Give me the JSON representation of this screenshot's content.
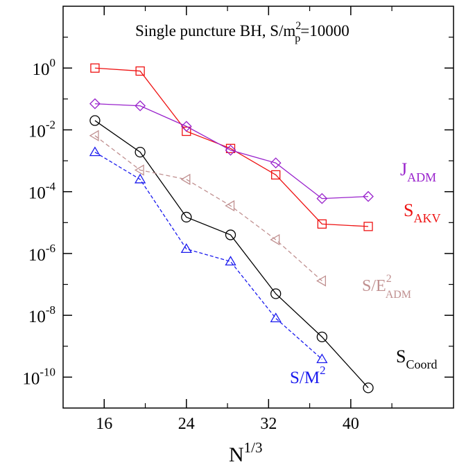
{
  "chart_data": {
    "type": "line",
    "title": "Single puncture BH, S/m",
    "title_sup": "2",
    "title_sub": "p",
    "title_tail": "=10000",
    "xlabel": "N",
    "xlabel_sup": "1/3",
    "ylabel": "",
    "xlim": [
      12,
      50
    ],
    "ylim": [
      -11,
      2
    ],
    "y_log_scale": true,
    "grid": false,
    "x_ticks": [
      {
        "value": 16,
        "label": "16"
      },
      {
        "value": 24,
        "label": "24"
      },
      {
        "value": 32,
        "label": "32"
      },
      {
        "value": 40,
        "label": "40"
      }
    ],
    "y_ticks": [
      {
        "exp": 0,
        "base": "10",
        "power": "0"
      },
      {
        "exp": -2,
        "base": "10",
        "power": "-2"
      },
      {
        "exp": -4,
        "base": "10",
        "power": "-4"
      },
      {
        "exp": -6,
        "base": "10",
        "power": "-6"
      },
      {
        "exp": -8,
        "base": "10",
        "power": "-8"
      },
      {
        "exp": -10,
        "base": "10",
        "power": "-10"
      }
    ],
    "series": [
      {
        "id": "s-akv",
        "label_main": "S",
        "label_sup": "",
        "label_sub": "AKV",
        "color": "#ee1111",
        "marker": "square",
        "dash": "",
        "x": [
          15.1,
          19.5,
          24.0,
          28.3,
          32.7,
          37.2,
          41.7
        ],
        "y": [
          1.0,
          0.8,
          0.009,
          0.0025,
          0.00035,
          9e-06,
          7.5e-06
        ]
      },
      {
        "id": "j-adm",
        "label_main": "J",
        "label_sup": "",
        "label_sub": "ADM",
        "color": "#9922cc",
        "marker": "diamond",
        "dash": "",
        "x": [
          15.1,
          19.5,
          24.0,
          28.3,
          32.7,
          37.2,
          41.7
        ],
        "y": [
          0.07,
          0.06,
          0.013,
          0.0022,
          0.00085,
          6e-05,
          7e-05
        ]
      },
      {
        "id": "s-coord",
        "label_main": "S",
        "label_sup": "",
        "label_sub": "Coord",
        "color": "#000000",
        "marker": "circle",
        "dash": "",
        "x": [
          15.1,
          19.5,
          24.0,
          28.3,
          32.7,
          37.2,
          41.7
        ],
        "y": [
          0.02,
          0.0019,
          1.5e-05,
          4e-06,
          5e-08,
          2e-09,
          4.5e-11
        ]
      },
      {
        "id": "s-eadm",
        "label_main": "S/E",
        "label_sup": "2",
        "label_sub": "ADM",
        "color": "#c09090",
        "marker": "triangle-left",
        "dash": "6,4",
        "x": [
          15.1,
          19.5,
          24.0,
          28.3,
          32.7,
          37.2
        ],
        "y": [
          0.0065,
          0.0005,
          0.00025,
          3.5e-05,
          2.8e-06,
          1.3e-07
        ]
      },
      {
        "id": "s-m2",
        "label_main": "S/M",
        "label_sup": "2",
        "label_sub": "",
        "color": "#1a1aee",
        "marker": "triangle-up",
        "dash": "5,3",
        "x": [
          15.1,
          19.5,
          24.0,
          28.3,
          32.7,
          37.2
        ],
        "y": [
          0.0019,
          0.00025,
          1.4e-06,
          5.5e-07,
          8e-09,
          3.8e-10
        ]
      }
    ]
  }
}
